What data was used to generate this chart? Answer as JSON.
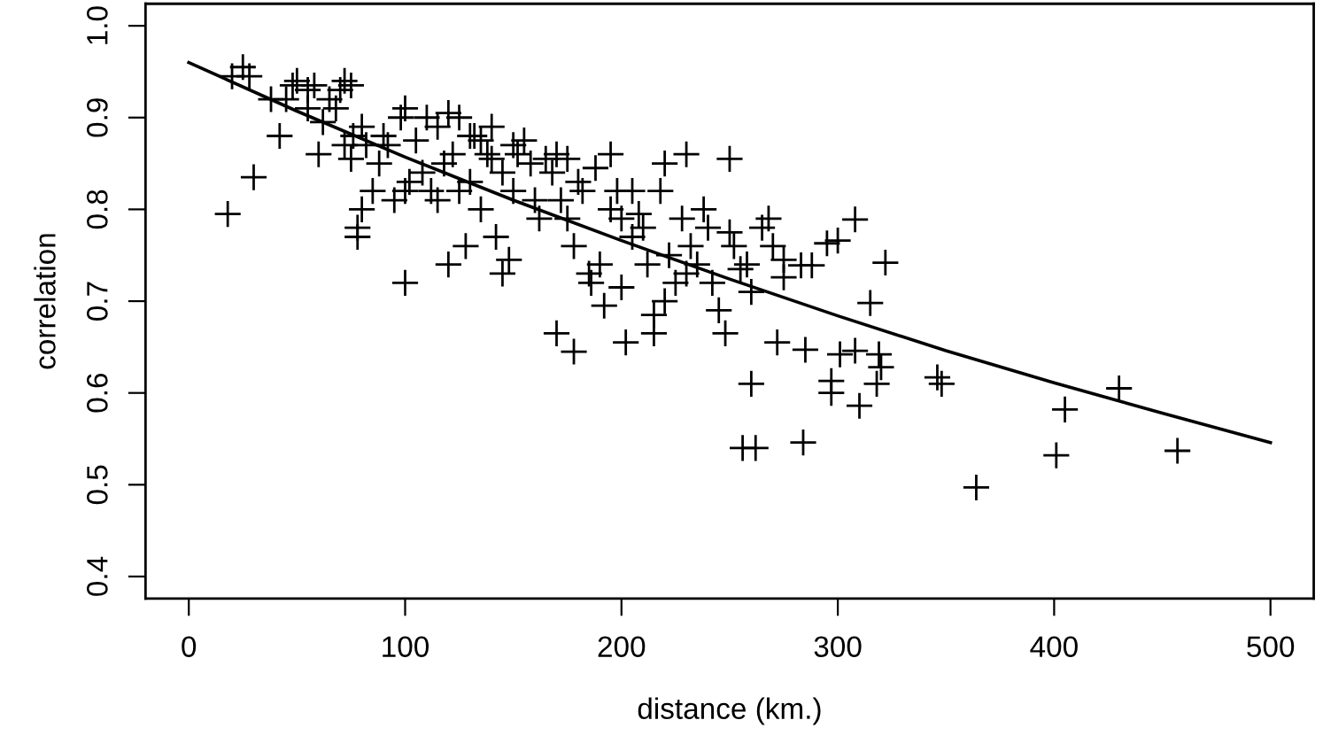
{
  "chart_data": {
    "type": "scatter",
    "xlabel": "distance (km.)",
    "ylabel": "correlation",
    "xlim": [
      -20,
      520
    ],
    "ylim": [
      0.376,
      1.024
    ],
    "xticks": [
      0,
      100,
      200,
      300,
      400,
      500
    ],
    "yticks": [
      0.4,
      0.5,
      0.6,
      0.7,
      0.8,
      0.9,
      {
        "value": 1.0,
        "label": "1.0"
      }
    ],
    "grid": false,
    "marker": "cross",
    "series": [
      {
        "color": "#000000",
        "x": [
          18,
          20,
          25,
          28,
          30,
          38,
          42,
          45,
          48,
          50,
          55,
          55,
          58,
          60,
          62,
          65,
          68,
          70,
          72,
          72,
          75,
          75,
          76,
          78,
          78,
          80,
          80,
          82,
          85,
          88,
          90,
          92,
          95,
          98,
          100,
          100,
          100,
          102,
          105,
          108,
          110,
          112,
          115,
          115,
          118,
          120,
          120,
          122,
          125,
          125,
          128,
          130,
          130,
          132,
          135,
          135,
          138,
          140,
          140,
          142,
          145,
          145,
          148,
          150,
          150,
          152,
          155,
          158,
          160,
          162,
          165,
          168,
          170,
          170,
          172,
          175,
          175,
          178,
          178,
          180,
          182,
          185,
          186,
          188,
          190,
          192,
          195,
          195,
          198,
          200,
          200,
          202,
          205,
          205,
          208,
          210,
          212,
          215,
          215,
          218,
          220,
          220,
          222,
          225,
          228,
          230,
          230,
          232,
          235,
          238,
          240,
          242,
          245,
          248,
          250,
          250,
          252,
          255,
          256,
          258,
          260,
          260,
          262,
          265,
          268,
          270,
          272,
          275,
          275,
          283,
          284,
          285,
          288,
          295,
          297,
          297,
          300,
          301,
          308,
          308,
          310,
          315,
          318,
          319,
          320,
          322,
          346,
          348,
          364,
          401,
          405,
          430,
          457
        ],
        "values": [
          0.795,
          0.945,
          0.955,
          0.945,
          0.835,
          0.92,
          0.88,
          0.92,
          0.935,
          0.94,
          0.93,
          0.91,
          0.935,
          0.86,
          0.895,
          0.92,
          0.91,
          0.93,
          0.94,
          0.87,
          0.935,
          0.855,
          0.88,
          0.77,
          0.78,
          0.8,
          0.89,
          0.87,
          0.82,
          0.85,
          0.88,
          0.87,
          0.81,
          0.9,
          0.91,
          0.72,
          0.82,
          0.83,
          0.875,
          0.84,
          0.9,
          0.82,
          0.81,
          0.89,
          0.85,
          0.905,
          0.74,
          0.86,
          0.9,
          0.82,
          0.76,
          0.88,
          0.83,
          0.88,
          0.875,
          0.8,
          0.86,
          0.89,
          0.855,
          0.77,
          0.84,
          0.73,
          0.745,
          0.87,
          0.82,
          0.86,
          0.875,
          0.85,
          0.81,
          0.79,
          0.855,
          0.84,
          0.86,
          0.665,
          0.81,
          0.855,
          0.79,
          0.645,
          0.76,
          0.83,
          0.82,
          0.73,
          0.72,
          0.845,
          0.74,
          0.695,
          0.86,
          0.8,
          0.82,
          0.79,
          0.715,
          0.655,
          0.77,
          0.82,
          0.795,
          0.78,
          0.74,
          0.685,
          0.665,
          0.82,
          0.85,
          0.7,
          0.75,
          0.72,
          0.79,
          0.86,
          0.73,
          0.76,
          0.74,
          0.8,
          0.78,
          0.72,
          0.69,
          0.665,
          0.855,
          0.775,
          0.76,
          0.735,
          0.54,
          0.74,
          0.71,
          0.61,
          0.54,
          0.78,
          0.79,
          0.76,
          0.655,
          0.745,
          0.726,
          0.739,
          0.546,
          0.647,
          0.739,
          0.763,
          0.613,
          0.6,
          0.766,
          0.642,
          0.646,
          0.789,
          0.586,
          0.698,
          0.61,
          0.642,
          0.628,
          0.742,
          0.617,
          0.61,
          0.497,
          0.532,
          0.582,
          0.605,
          0.537
        ]
      },
      {
        "type": "line",
        "color": "#000000",
        "marker": "none",
        "line_style": "solid",
        "x": [
          0,
          50,
          100,
          150,
          200,
          250,
          300,
          350,
          400,
          450,
          500
        ],
        "values": [
          0.96,
          0.907,
          0.857,
          0.81,
          0.766,
          0.724,
          0.684,
          0.646,
          0.611,
          0.578,
          0.546
        ]
      }
    ]
  }
}
